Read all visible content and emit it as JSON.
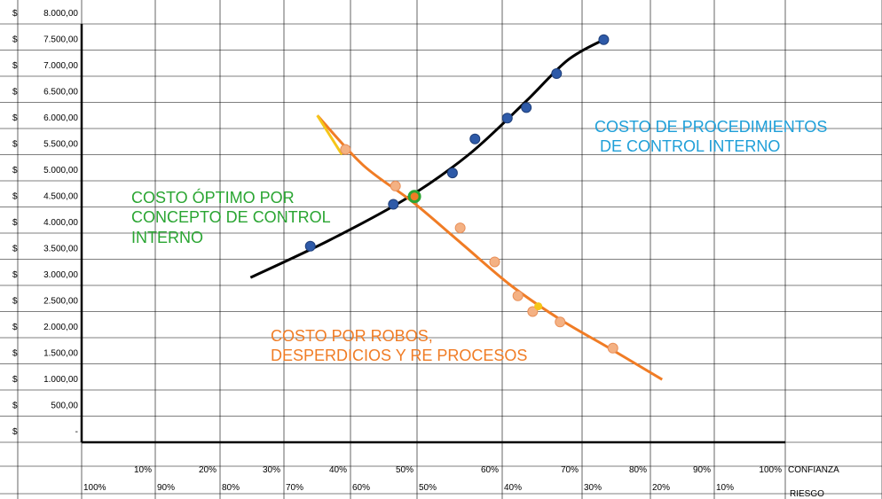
{
  "chart_data": {
    "type": "scatter",
    "currency_symbol": "$",
    "y_ticks": [
      "8.000,00",
      "7.500,00",
      "7.000,00",
      "6.500,00",
      "6.000,00",
      "5.500,00",
      "5.000,00",
      "4.500,00",
      "4.000,00",
      "3.500,00",
      "3.000,00",
      "2.500,00",
      "2.000,00",
      "1.500,00",
      "1.000,00",
      "500,00",
      "-"
    ],
    "ylim": [
      0,
      8000
    ],
    "x_confianza_ticks": [
      "10%",
      "20%",
      "30%",
      "40%",
      "50%",
      "60%",
      "70%",
      "80%",
      "90%",
      "100%"
    ],
    "x_confianza_label": "CONFIANZA",
    "x_riesgo_ticks": [
      "100%",
      "90%",
      "80%",
      "70%",
      "60%",
      "50%",
      "40%",
      "30%",
      "20%",
      "10%"
    ],
    "x_riesgo_label": "RIESGO",
    "series": [
      {
        "name": "COSTO DE PROCEDIMIENTOS DE CONTROL INTERNO",
        "color": "#000000",
        "marker_color": "#2e5aa8",
        "points": [
          [
            32.5,
            3750
          ],
          [
            44.3,
            4550
          ],
          [
            52.7,
            5150
          ],
          [
            55.9,
            5800
          ],
          [
            60.5,
            6200
          ],
          [
            63.2,
            6400
          ],
          [
            67.5,
            7050
          ],
          [
            74.2,
            7700
          ]
        ],
        "trend": [
          [
            24,
            3150
          ],
          [
            35,
            3850
          ],
          [
            46,
            4650
          ],
          [
            55,
            5500
          ],
          [
            63,
            6500
          ],
          [
            69,
            7300
          ],
          [
            74.2,
            7700
          ]
        ]
      },
      {
        "name": "COSTO POR ROBOS, DESPERDICIOS Y RE PROCESOS",
        "color": "#f07c25",
        "marker_color": "#f4b183",
        "points": [
          [
            37.5,
            5600
          ],
          [
            44.6,
            4900
          ],
          [
            53.8,
            4100
          ],
          [
            58.7,
            3450
          ],
          [
            62,
            2800
          ],
          [
            64.1,
            2500
          ],
          [
            68,
            2300
          ],
          [
            75.5,
            1800
          ]
        ],
        "trend": [
          [
            33.5,
            6250
          ],
          [
            40,
            5300
          ],
          [
            47,
            4600
          ],
          [
            54,
            3800
          ],
          [
            61,
            3000
          ],
          [
            68,
            2350
          ],
          [
            75,
            1800
          ],
          [
            82.5,
            1200
          ]
        ],
        "highlight_segment": [
          [
            33.5,
            6250
          ],
          [
            37,
            5500
          ]
        ],
        "highlight_color": "#f5c518"
      }
    ],
    "optimum_point": [
      47.3,
      4700
    ],
    "annotations": {
      "optimum_line1": "COSTO ÓPTIMO POR",
      "optimum_line2": "CONCEPTO DE CONTROL",
      "optimum_line3": "INTERNO",
      "control_line1": "COSTO DE PROCEDIMIENTOS",
      "control_line2": "DE CONTROL INTERNO",
      "robos_line1": "COSTO POR ROBOS,",
      "robos_line2": "DESPERDICIOS Y RE PROCESOS"
    },
    "colors": {
      "optimum": "#2aa532",
      "control": "#1f9fd8",
      "robos": "#f07c25",
      "grid": "#000000"
    }
  }
}
